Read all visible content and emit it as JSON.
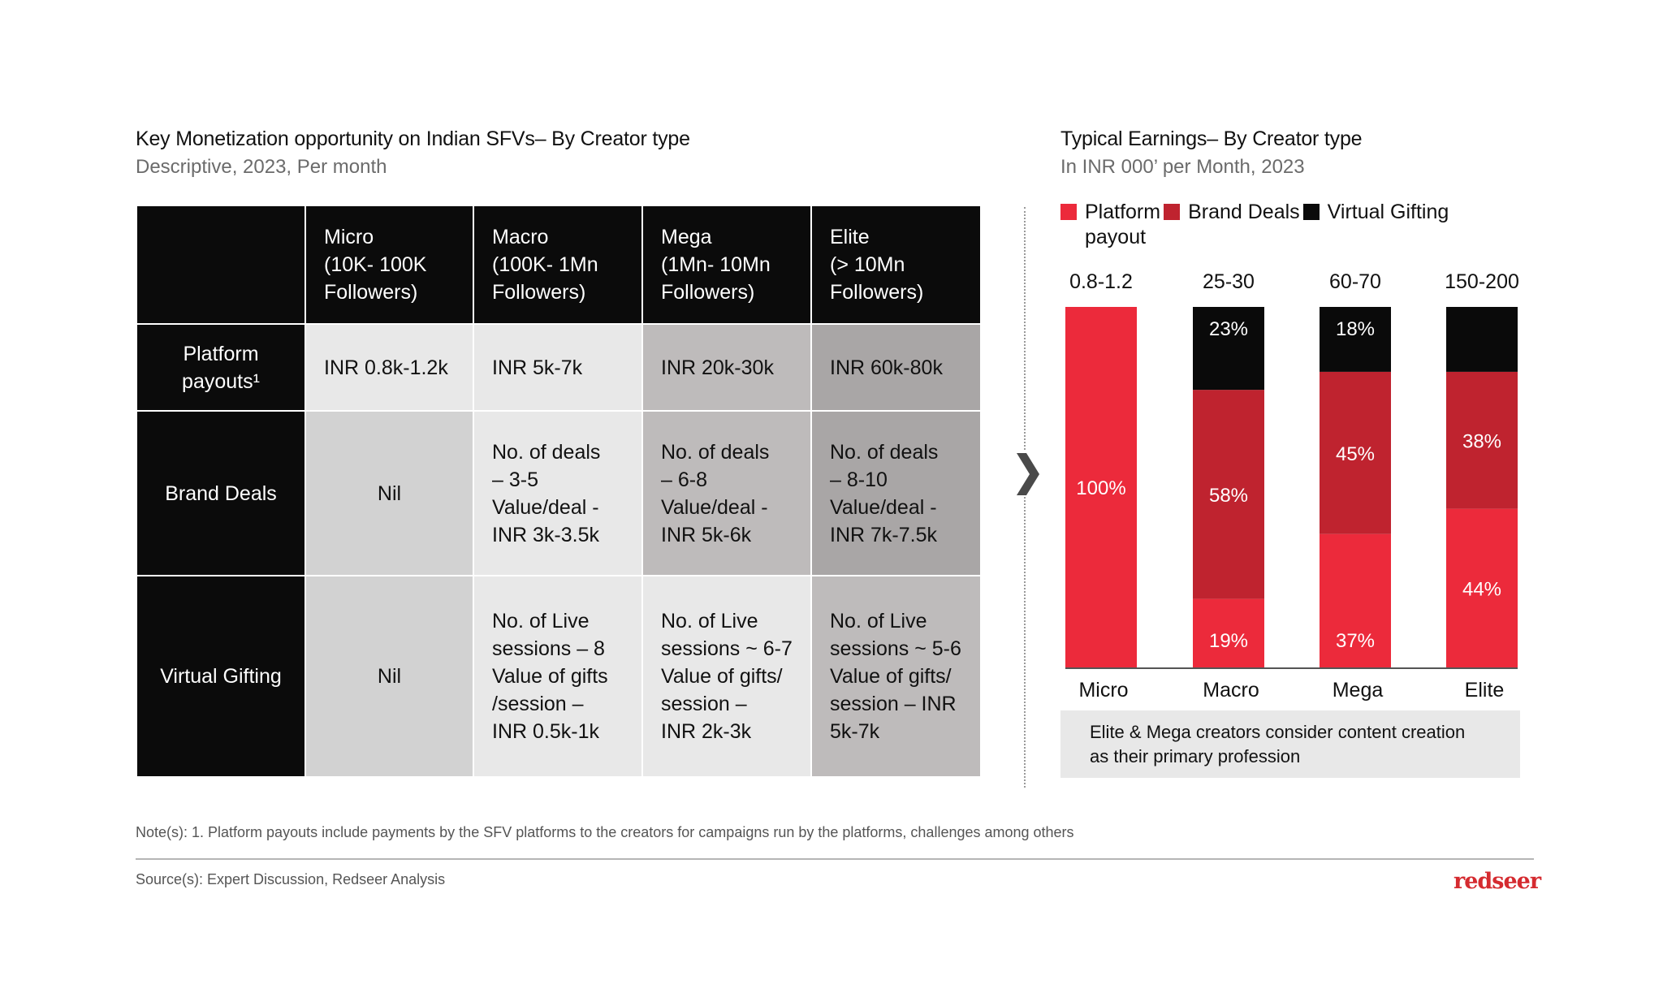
{
  "left_panel": {
    "title": "Key Monetization opportunity on Indian SFVs– By Creator type",
    "subtitle": "Descriptive, 2023, Per month",
    "table": {
      "columns": [
        {
          "line1": "Micro",
          "line2": "(10K- 100K",
          "line3": "Followers)"
        },
        {
          "line1": "Macro",
          "line2": "(100K- 1Mn",
          "line3": "Followers)"
        },
        {
          "line1": "Mega",
          "line2": "(1Mn- 10Mn",
          "line3": "Followers)"
        },
        {
          "line1": "Elite",
          "line2": "(> 10Mn",
          "line3": "Followers)"
        }
      ],
      "rows": [
        {
          "label_line1": "Platform",
          "label_line2": "payouts¹",
          "cells": [
            [
              "INR 0.8k-1.2k"
            ],
            [
              "INR 5k-7k"
            ],
            [
              "INR 20k-30k"
            ],
            [
              "INR 60k-80k"
            ]
          ]
        },
        {
          "label_line1": "Brand Deals",
          "cells": [
            [
              "Nil"
            ],
            [
              "No. of deals",
              "– 3-5",
              "Value/deal -",
              "INR 3k-3.5k"
            ],
            [
              "No. of deals",
              "– 6-8",
              "Value/deal -",
              "INR 5k-6k"
            ],
            [
              "No. of deals",
              "– 8-10",
              "Value/deal -",
              "INR 7k-7.5k"
            ]
          ]
        },
        {
          "label_line1": "Virtual Gifting",
          "cells": [
            [
              "Nil"
            ],
            [
              "No. of Live",
              "sessions – 8",
              "Value of gifts",
              "/session –",
              "INR 0.5k-1k"
            ],
            [
              "No. of Live",
              "sessions ~ 6-7",
              "Value of gifts/",
              "session –",
              "INR 2k-3k"
            ],
            [
              "No. of Live",
              "sessions ~ 5-6",
              "Value of gifts/",
              "session – INR",
              "5k-7k"
            ]
          ]
        }
      ]
    }
  },
  "right_panel": {
    "callout": "Elite & Mega creators consider content creation as their primary profession",
    "callout_line1": "Elite & Mega creators consider content creation",
    "callout_line2": "as their primary profession"
  },
  "chart_data": {
    "type": "bar",
    "stacked": true,
    "normalized": true,
    "title": "Typical Earnings– By Creator type",
    "subtitle": "In INR 000’ per Month, 2023",
    "categories": [
      "Micro",
      "Macro",
      "Mega",
      "Elite"
    ],
    "totals_labels": [
      "0.8-1.2",
      "25-30",
      "60-70",
      "150-200"
    ],
    "series": [
      {
        "name": "Platform payout",
        "color": "#ec2a3b",
        "values": [
          100,
          19,
          37,
          44
        ],
        "labels": [
          "100%",
          "19%",
          "37%",
          "44%"
        ]
      },
      {
        "name": "Brand Deals",
        "color": "#bf232f",
        "values": [
          0,
          58,
          45,
          38
        ],
        "labels": [
          "",
          "58%",
          "45%",
          "38%"
        ]
      },
      {
        "name": "Virtual Gifting",
        "color": "#0a0a0a",
        "values": [
          0,
          23,
          18,
          18
        ],
        "labels": [
          "",
          "23%",
          "18%",
          ""
        ]
      }
    ],
    "legend": [
      {
        "line1": "Platform",
        "line2": "payout",
        "color": "#ec2a3b"
      },
      {
        "line1": "Brand Deals",
        "color": "#bf232f"
      },
      {
        "line1": "Virtual Gifting",
        "color": "#0a0a0a"
      }
    ],
    "legend_position": "top-left",
    "ylim": [
      0,
      100
    ],
    "grid": false,
    "xlabel": "",
    "ylabel": ""
  },
  "footer": {
    "note": "Note(s): 1. Platform payouts include payments by the SFV platforms to the creators for campaigns run by the platforms, challenges among others",
    "source": "Source(s): Expert Discussion, Redseer Analysis",
    "logo": "redseer"
  }
}
